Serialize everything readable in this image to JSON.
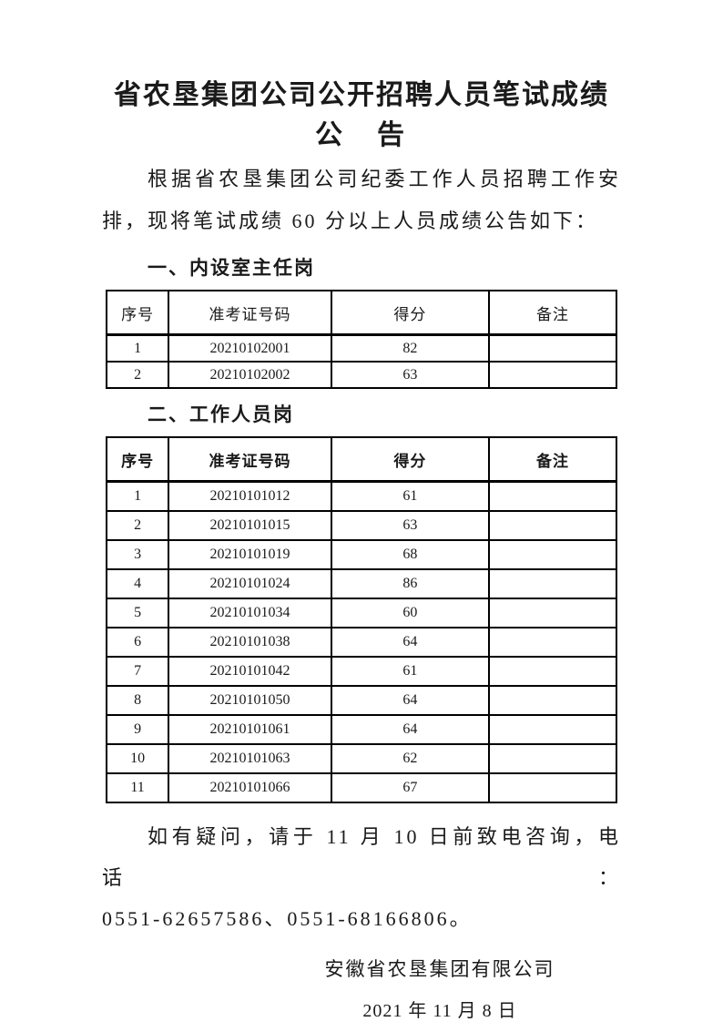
{
  "page": {
    "background": "#ffffff",
    "text_color": "#1a1a1a",
    "table_border_color": "#000000"
  },
  "document": {
    "title": {
      "line1": "省农垦集团公司公开招聘人员笔试成绩",
      "line2": "公　告"
    },
    "intro": {
      "line1": "根据省农垦集团公司纪委工作人员招聘工作安",
      "line2": "排，现将笔试成绩 60 分以上人员成绩公告如下："
    },
    "sections": [
      {
        "heading": "一、内设室主任岗",
        "table": {
          "headers": [
            "序号",
            "准考证号码",
            "得分",
            "备注"
          ],
          "rows": [
            [
              "1",
              "20210102001",
              "82",
              ""
            ],
            [
              "2",
              "20210102002",
              "63",
              ""
            ]
          ]
        }
      },
      {
        "heading": "二、工作人员岗",
        "table": {
          "headers": [
            "序号",
            "准考证号码",
            "得分",
            "备注"
          ],
          "rows": [
            [
              "1",
              "20210101012",
              "61",
              ""
            ],
            [
              "2",
              "20210101015",
              "63",
              ""
            ],
            [
              "3",
              "20210101019",
              "68",
              ""
            ],
            [
              "4",
              "20210101024",
              "86",
              ""
            ],
            [
              "5",
              "20210101034",
              "60",
              ""
            ],
            [
              "6",
              "20210101038",
              "64",
              ""
            ],
            [
              "7",
              "20210101042",
              "61",
              ""
            ],
            [
              "8",
              "20210101050",
              "64",
              ""
            ],
            [
              "9",
              "20210101061",
              "64",
              ""
            ],
            [
              "10",
              "20210101063",
              "62",
              ""
            ],
            [
              "11",
              "20210101066",
              "67",
              ""
            ]
          ]
        }
      }
    ],
    "closing": {
      "line1": "如有疑问，请于 11 月 10 日前致电咨询，电话：",
      "line2": "0551-62657586、0551-68166806。"
    },
    "signature": "安徽省农垦集团有限公司",
    "date": "2021 年 11 月 8 日"
  }
}
